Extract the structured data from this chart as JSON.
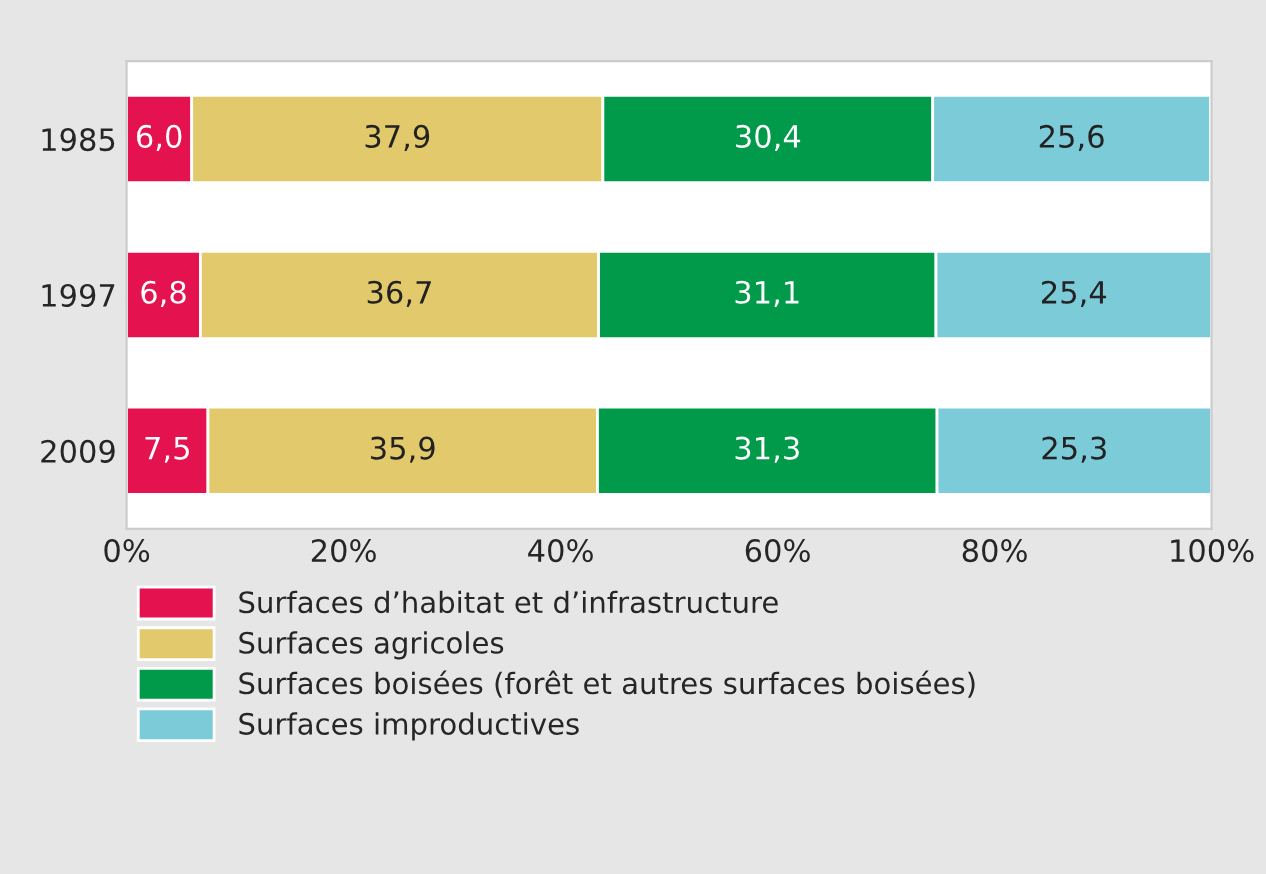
{
  "chart_data": {
    "type": "bar",
    "orientation": "horizontal",
    "stacked": true,
    "categories": [
      "1985",
      "1997",
      "2009"
    ],
    "series": [
      {
        "name": "Surfaces d’habitat et d’infrastructure",
        "color": "#e4134f",
        "values": [
          6.0,
          6.8,
          7.5
        ],
        "value_labels": [
          "6,0",
          "6,8",
          "7,5"
        ]
      },
      {
        "name": "Surfaces agricoles",
        "color": "#e2c96b",
        "values": [
          37.9,
          36.7,
          35.9
        ],
        "value_labels": [
          "37,9",
          "36,7",
          "35,9"
        ]
      },
      {
        "name": "Surfaces boisées (forêt et autres surfaces boisées)",
        "color": "#009a4a",
        "values": [
          30.4,
          31.1,
          31.3
        ],
        "value_labels": [
          "30,4",
          "31,1",
          "31,3"
        ]
      },
      {
        "name": "Surfaces improductives",
        "color": "#7ccbd8",
        "values": [
          25.6,
          25.4,
          25.3
        ],
        "value_labels": [
          "25,6",
          "25,4",
          "25,3"
        ]
      }
    ],
    "xlim": [
      0,
      100
    ],
    "xticks": [
      {
        "value": 0,
        "label": "0%"
      },
      {
        "value": 20,
        "label": "20%"
      },
      {
        "value": 40,
        "label": "40%"
      },
      {
        "value": 60,
        "label": "60%"
      },
      {
        "value": 80,
        "label": "80%"
      },
      {
        "value": 100,
        "label": "100%"
      }
    ],
    "legend": "bottom",
    "grid": false
  }
}
